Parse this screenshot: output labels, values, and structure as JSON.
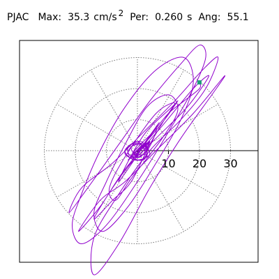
{
  "header": {
    "station": "PJAC",
    "max_label": "Max:",
    "max_value": "35.3",
    "max_units": "cm/s",
    "max_units_sup": "2",
    "per_label": "Per:",
    "per_value": "0.260",
    "per_units": "s",
    "ang_label": "Ang:",
    "ang_value": "55.1"
  },
  "chart_data": {
    "type": "polar-particle-motion",
    "title": "",
    "xlabel": "",
    "ylabel": "",
    "rings": [
      10,
      20,
      30
    ],
    "tick_labels": [
      "10",
      "20",
      "30"
    ],
    "angular_gridlines_deg": [
      0,
      30,
      60,
      90,
      120,
      150,
      180,
      210,
      240,
      270,
      300,
      330
    ],
    "max_amplitude": 35.3,
    "angle_deg": 55.1,
    "colors": {
      "trace": "#9000cc",
      "grid": "#777777",
      "axis": "#000000",
      "marker": "#1e9f78"
    },
    "trace": [
      [
        0,
        0
      ],
      [
        4,
        3
      ],
      [
        1,
        -2
      ],
      [
        -3,
        -1
      ],
      [
        -1,
        2
      ],
      [
        3,
        1
      ],
      [
        2,
        -3
      ],
      [
        -2,
        -2
      ],
      [
        -3,
        1
      ],
      [
        1,
        3
      ],
      [
        4,
        -1
      ],
      [
        0,
        -3
      ],
      [
        -4,
        -1
      ],
      [
        -2,
        2
      ],
      [
        2,
        2
      ],
      [
        3,
        -2
      ],
      [
        -1,
        -3
      ],
      [
        -4,
        0
      ],
      [
        0,
        3
      ],
      [
        3,
        0
      ],
      [
        6,
        7
      ],
      [
        -3,
        -5
      ],
      [
        7,
        9
      ],
      [
        -6,
        -10
      ],
      [
        2,
        5
      ],
      [
        12,
        15
      ],
      [
        6,
        12
      ],
      [
        -4,
        -2
      ],
      [
        -9,
        -12
      ],
      [
        -7,
        -16
      ],
      [
        -2,
        -9
      ],
      [
        8,
        4
      ],
      [
        13,
        13
      ],
      [
        10,
        18
      ],
      [
        3,
        14
      ],
      [
        -4,
        2
      ],
      [
        -10,
        -10
      ],
      [
        -14,
        -20
      ],
      [
        -11,
        -26
      ],
      [
        -3,
        -18
      ],
      [
        6,
        -4
      ],
      [
        14,
        10
      ],
      [
        18,
        22
      ],
      [
        15,
        30
      ],
      [
        6,
        26
      ],
      [
        -4,
        14
      ],
      [
        -12,
        0
      ],
      [
        -18,
        -14
      ],
      [
        -21,
        -24
      ],
      [
        -18,
        -30
      ],
      [
        -10,
        -24
      ],
      [
        0,
        -10
      ],
      [
        10,
        6
      ],
      [
        18,
        20
      ],
      [
        22,
        30
      ],
      [
        20,
        34
      ],
      [
        14,
        28
      ],
      [
        4,
        16
      ],
      [
        -6,
        2
      ],
      [
        -16,
        -12
      ],
      [
        -22,
        -20
      ],
      [
        -18,
        -12
      ],
      [
        -8,
        -4
      ],
      [
        2,
        6
      ],
      [
        12,
        16
      ],
      [
        21,
        26
      ],
      [
        26,
        30
      ],
      [
        22,
        20
      ],
      [
        14,
        10
      ],
      [
        4,
        0
      ],
      [
        -6,
        -14
      ],
      [
        -14,
        -28
      ],
      [
        -14,
        -40
      ],
      [
        -6,
        -30
      ],
      [
        4,
        -12
      ],
      [
        14,
        4
      ],
      [
        24,
        18
      ],
      [
        28,
        24
      ],
      [
        18,
        12
      ],
      [
        6,
        0
      ],
      [
        -4,
        -10
      ],
      [
        -12,
        -16
      ],
      [
        -19,
        -26
      ],
      [
        -12,
        -18
      ],
      [
        -4,
        -6
      ],
      [
        8,
        8
      ],
      [
        18,
        20
      ],
      [
        23,
        24
      ],
      [
        16,
        14
      ],
      [
        6,
        4
      ],
      [
        -2,
        -4
      ],
      [
        -8,
        -12
      ],
      [
        -14,
        -22
      ],
      [
        -8,
        -16
      ],
      [
        -2,
        -10
      ],
      [
        4,
        2
      ],
      [
        10,
        12
      ],
      [
        13,
        16
      ],
      [
        8,
        9
      ],
      [
        2,
        2
      ],
      [
        -3,
        -3
      ],
      [
        2,
        1
      ],
      [
        4,
        3
      ],
      [
        1,
        -1
      ],
      [
        -2,
        -2
      ],
      [
        2,
        2
      ],
      [
        3,
        0
      ],
      [
        0,
        -2
      ],
      [
        -2,
        1
      ],
      [
        1,
        2
      ],
      [
        3,
        -1
      ],
      [
        -1,
        -1
      ],
      [
        0,
        1
      ],
      [
        5,
        6
      ],
      [
        10,
        12
      ],
      [
        15,
        16
      ],
      [
        20,
        20
      ],
      [
        20,
        22
      ]
    ]
  }
}
